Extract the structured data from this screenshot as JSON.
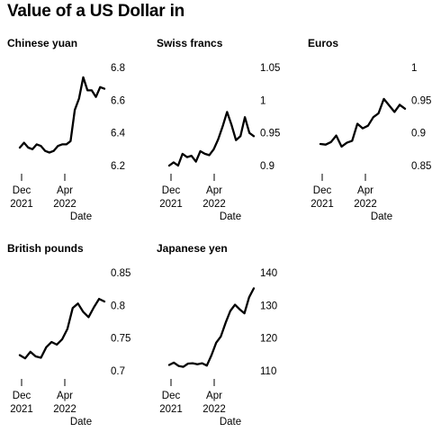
{
  "title": "Value of a US Dollar in",
  "chart_data": [
    {
      "type": "line",
      "title": "Chinese yuan",
      "xlabel": "Date",
      "x_ticks": [
        "Dec\n2021",
        "Apr\n2022"
      ],
      "y_ticks": [
        6.2,
        6.4,
        6.6,
        6.8
      ],
      "ylim": [
        6.2,
        6.8
      ],
      "grid": false,
      "series": [
        {
          "values": [
            6.31,
            6.34,
            6.31,
            6.3,
            6.33,
            6.32,
            6.29,
            6.28,
            6.29,
            6.32,
            6.33,
            6.33,
            6.35,
            6.54,
            6.61,
            6.74,
            6.66,
            6.66,
            6.62,
            6.68,
            6.67
          ]
        }
      ]
    },
    {
      "type": "line",
      "title": "Swiss francs",
      "xlabel": "Date",
      "x_ticks": [
        "Dec\n2021",
        "Apr\n2022"
      ],
      "y_ticks": [
        0.9,
        0.95,
        1.0,
        1.05
      ],
      "ylim": [
        0.9,
        1.05
      ],
      "grid": false,
      "series": [
        {
          "values": [
            0.9,
            0.905,
            0.9,
            0.918,
            0.913,
            0.915,
            0.906,
            0.922,
            0.918,
            0.916,
            0.925,
            0.94,
            0.96,
            0.982,
            0.962,
            0.939,
            0.945,
            0.974,
            0.95,
            0.945
          ]
        }
      ]
    },
    {
      "type": "line",
      "title": "Euros",
      "xlabel": "Date",
      "x_ticks": [
        "Dec\n2021",
        "Apr\n2022"
      ],
      "y_ticks": [
        0.85,
        0.9,
        0.95,
        1.0
      ],
      "ylim": [
        0.85,
        1.0
      ],
      "grid": false,
      "series": [
        {
          "values": [
            0.883,
            0.882,
            0.886,
            0.896,
            0.879,
            0.885,
            0.888,
            0.914,
            0.907,
            0.911,
            0.924,
            0.93,
            0.952,
            0.942,
            0.932,
            0.943,
            0.937
          ]
        }
      ]
    },
    {
      "type": "line",
      "title": "British pounds",
      "xlabel": "Date",
      "x_ticks": [
        "Dec\n2021",
        "Apr\n2022"
      ],
      "y_ticks": [
        0.7,
        0.75,
        0.8,
        0.85
      ],
      "ylim": [
        0.7,
        0.85
      ],
      "grid": false,
      "series": [
        {
          "values": [
            0.724,
            0.719,
            0.729,
            0.722,
            0.72,
            0.736,
            0.744,
            0.74,
            0.748,
            0.764,
            0.796,
            0.803,
            0.79,
            0.782,
            0.797,
            0.81,
            0.806
          ]
        }
      ]
    },
    {
      "type": "line",
      "title": "Japanese yen",
      "xlabel": "Date",
      "x_ticks": [
        "Dec\n2021",
        "Apr\n2022"
      ],
      "y_ticks": [
        110,
        120,
        130,
        140
      ],
      "ylim": [
        110,
        140
      ],
      "grid": false,
      "series": [
        {
          "values": [
            111.8,
            112.5,
            111.5,
            111.2,
            112.2,
            112.3,
            112.0,
            112.3,
            111.6,
            114.8,
            118.6,
            120.5,
            124.7,
            128.3,
            130.2,
            128.8,
            127.6,
            132.5,
            135.2
          ]
        }
      ]
    }
  ]
}
